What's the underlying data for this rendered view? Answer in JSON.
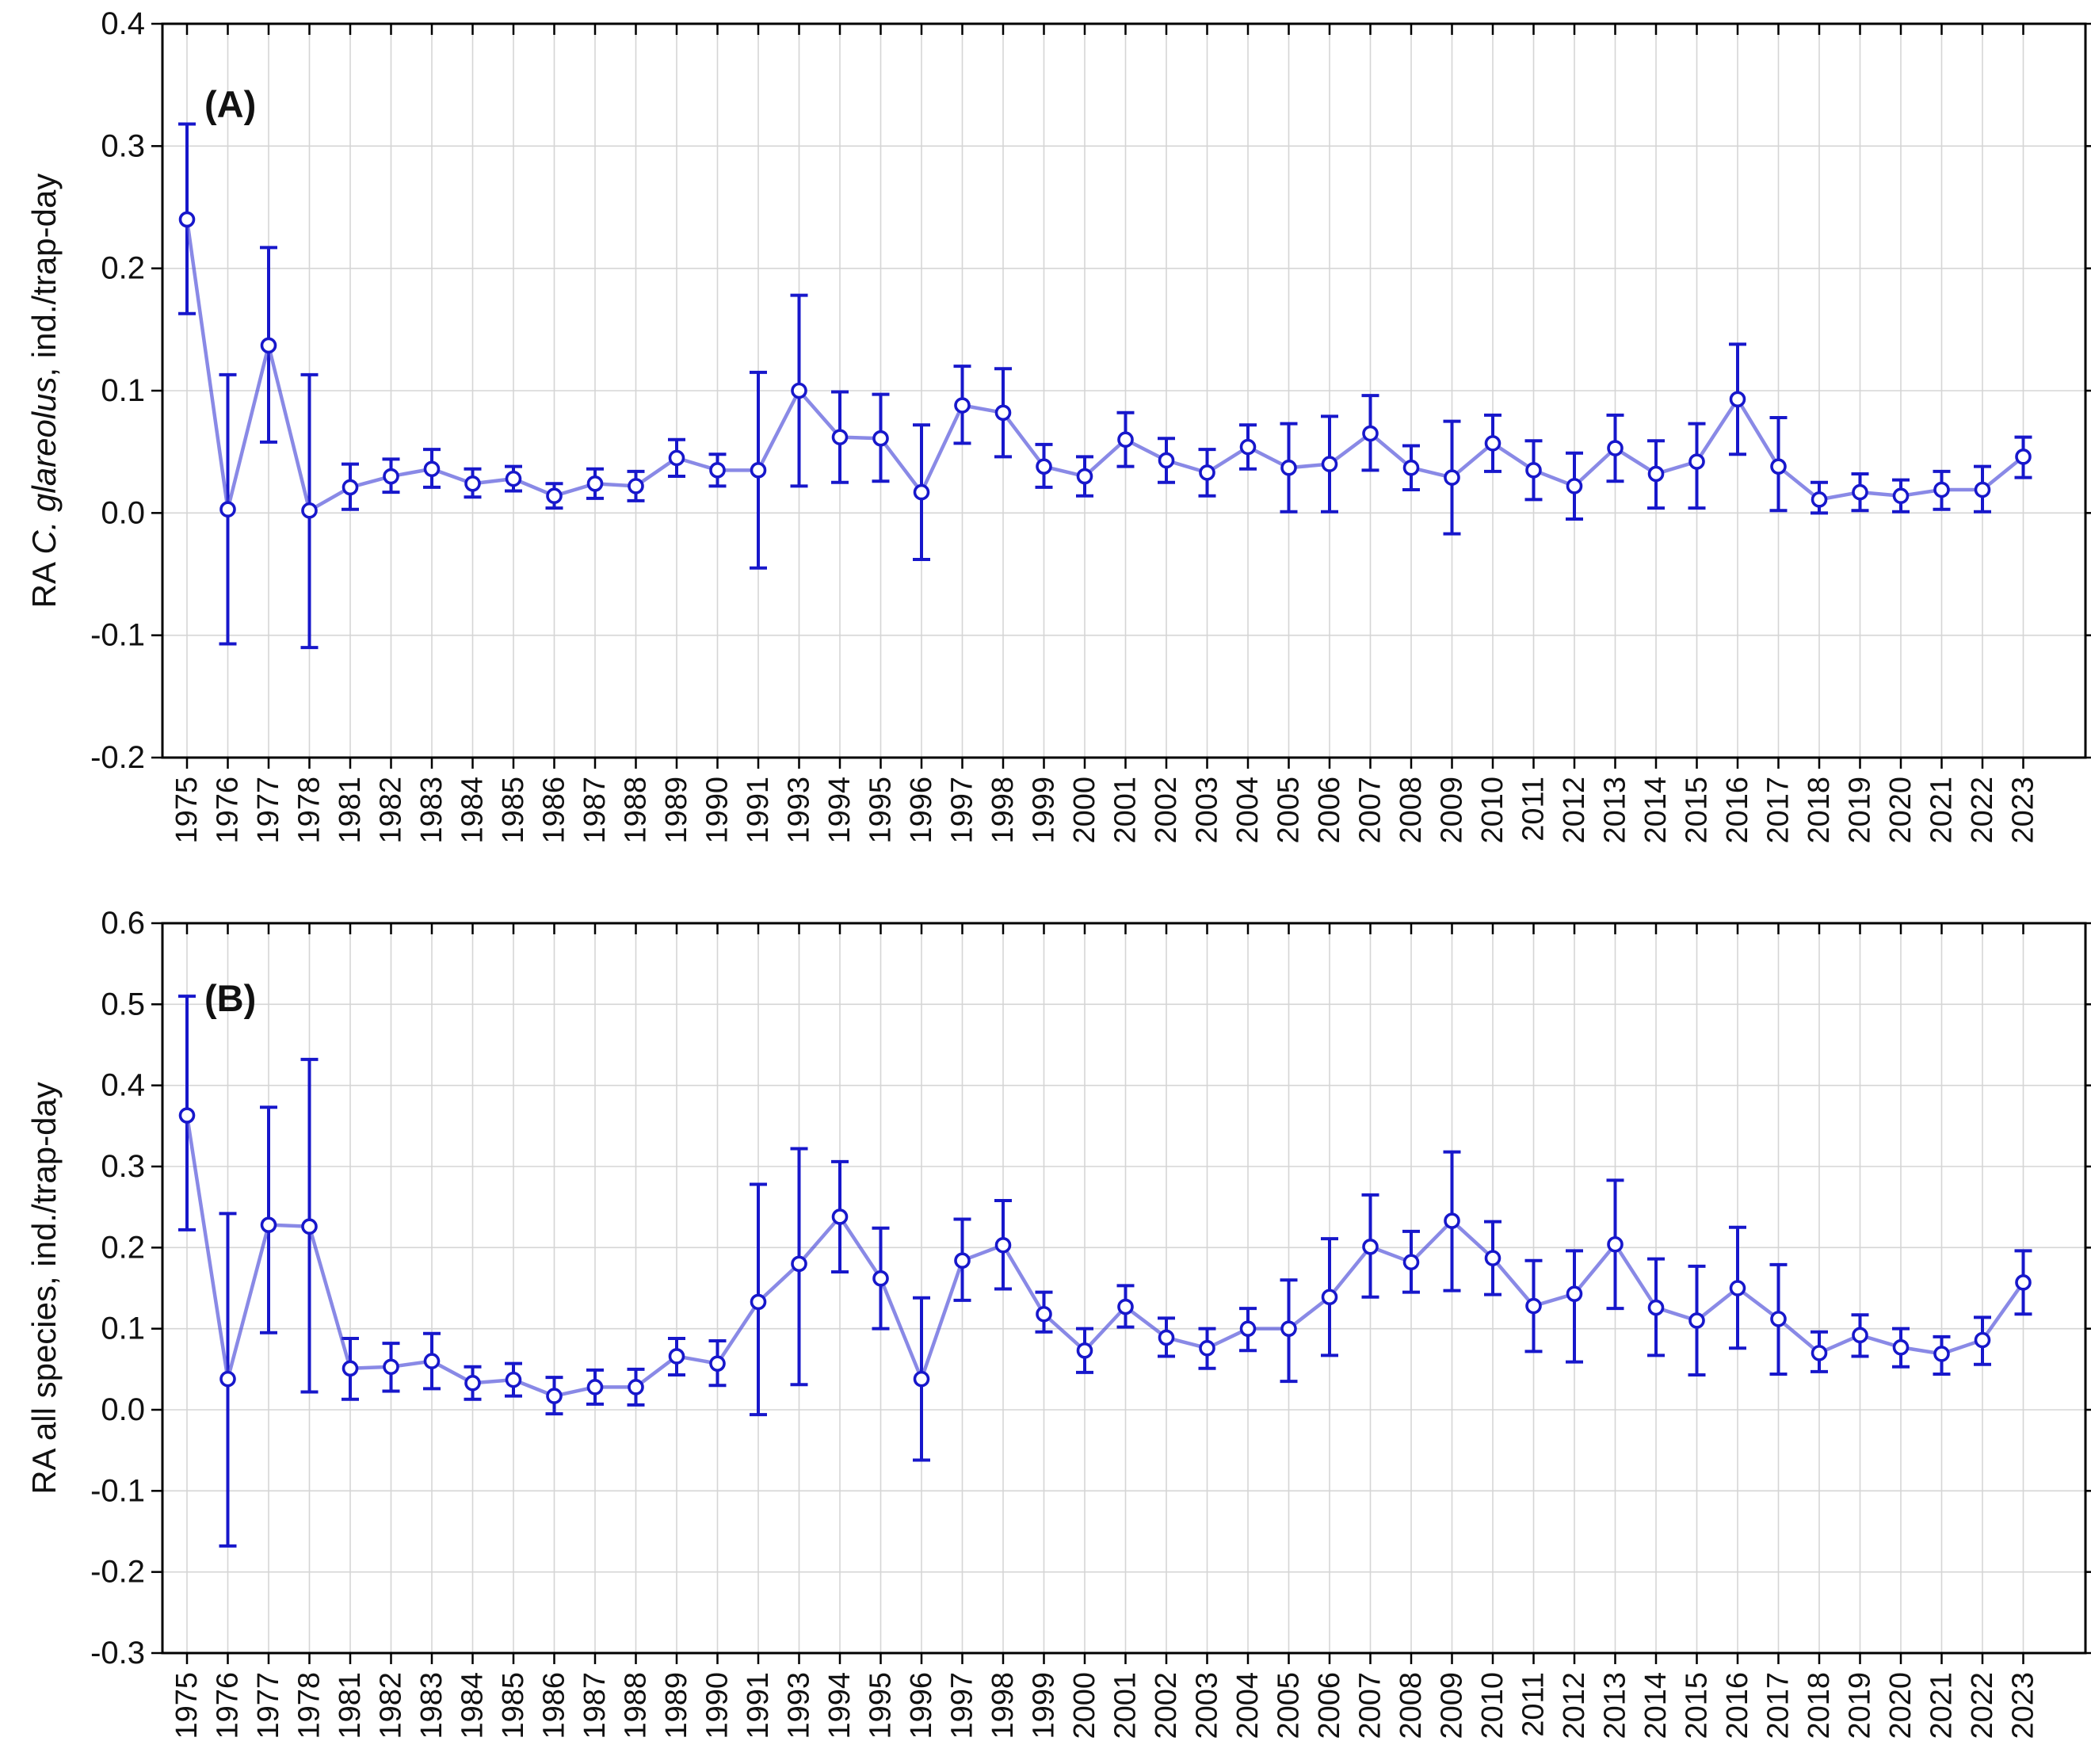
{
  "figure": {
    "background": "#ffffff",
    "series_color": "#1717cb",
    "line_color": "rgba(64,64,214,0.62)",
    "grid_color": "#d5d5d5",
    "axis_color": "#000000",
    "text_color": "#111111",
    "marker_fill": "#ffffff"
  },
  "chart_data": [
    {
      "type": "line",
      "panel_label": "(A)",
      "ylabel": "RA C. glareolus, ind./trap-day",
      "ylabel_parts": [
        {
          "text": "RA ",
          "italic": false
        },
        {
          "text": "C. glareolus",
          "italic": true
        },
        {
          "text": ", ind./trap-day",
          "italic": false
        }
      ],
      "xlabel": "",
      "ylim": [
        -0.2,
        0.4
      ],
      "yticks": [
        0.4,
        0.3,
        0.2,
        0.1,
        0.0,
        -0.1,
        -0.2
      ],
      "grid": true,
      "legend_position": "none",
      "marker": "open-circle",
      "categories": [
        1975,
        1976,
        1977,
        1978,
        1981,
        1982,
        1983,
        1984,
        1985,
        1986,
        1987,
        1988,
        1989,
        1990,
        1991,
        1993,
        1994,
        1995,
        1996,
        1997,
        1998,
        1999,
        2000,
        2001,
        2002,
        2003,
        2004,
        2005,
        2006,
        2007,
        2008,
        2009,
        2010,
        2011,
        2012,
        2013,
        2014,
        2015,
        2016,
        2017,
        2018,
        2019,
        2020,
        2021,
        2022,
        2023
      ],
      "series": [
        {
          "name": "RA C. glareolus",
          "values": [
            0.24,
            0.003,
            0.137,
            0.002,
            0.021,
            0.03,
            0.036,
            0.024,
            0.028,
            0.014,
            0.024,
            0.022,
            0.045,
            0.035,
            0.035,
            0.1,
            0.062,
            0.061,
            0.017,
            0.088,
            0.082,
            0.038,
            0.03,
            0.06,
            0.043,
            0.033,
            0.054,
            0.037,
            0.04,
            0.065,
            0.037,
            0.029,
            0.057,
            0.035,
            0.022,
            0.053,
            0.032,
            0.042,
            0.093,
            0.038,
            0.011,
            0.017,
            0.014,
            0.019,
            0.019,
            0.046
          ],
          "ci_low": [
            0.163,
            -0.107,
            0.058,
            -0.11,
            0.003,
            0.017,
            0.021,
            0.013,
            0.018,
            0.004,
            0.012,
            0.01,
            0.03,
            0.022,
            -0.045,
            0.022,
            0.025,
            0.026,
            -0.038,
            0.057,
            0.046,
            0.021,
            0.014,
            0.038,
            0.025,
            0.014,
            0.036,
            0.001,
            0.001,
            0.035,
            0.019,
            -0.017,
            0.034,
            0.011,
            -0.005,
            0.026,
            0.004,
            0.004,
            0.048,
            0.002,
            0.0,
            0.002,
            0.001,
            0.003,
            0.001,
            0.029
          ],
          "ci_high": [
            0.318,
            0.113,
            0.217,
            0.113,
            0.04,
            0.044,
            0.052,
            0.036,
            0.038,
            0.024,
            0.036,
            0.034,
            0.06,
            0.048,
            0.115,
            0.178,
            0.099,
            0.097,
            0.072,
            0.12,
            0.118,
            0.056,
            0.046,
            0.082,
            0.061,
            0.052,
            0.072,
            0.073,
            0.079,
            0.096,
            0.055,
            0.075,
            0.08,
            0.059,
            0.049,
            0.08,
            0.059,
            0.073,
            0.138,
            0.078,
            0.025,
            0.032,
            0.027,
            0.034,
            0.038,
            0.062
          ]
        }
      ]
    },
    {
      "type": "line",
      "panel_label": "(B)",
      "ylabel": "RA all species, ind./trap-day",
      "ylabel_parts": [
        {
          "text": "RA all species, ind./trap-day",
          "italic": false
        }
      ],
      "xlabel": "",
      "ylim": [
        -0.3,
        0.6
      ],
      "yticks": [
        0.6,
        0.5,
        0.4,
        0.3,
        0.2,
        0.1,
        0.0,
        -0.1,
        -0.2,
        -0.3
      ],
      "grid": true,
      "legend_position": "none",
      "marker": "open-circle",
      "categories": [
        1975,
        1976,
        1977,
        1978,
        1981,
        1982,
        1983,
        1984,
        1985,
        1986,
        1987,
        1988,
        1989,
        1990,
        1991,
        1993,
        1994,
        1995,
        1996,
        1997,
        1998,
        1999,
        2000,
        2001,
        2002,
        2003,
        2004,
        2005,
        2006,
        2007,
        2008,
        2009,
        2010,
        2011,
        2012,
        2013,
        2014,
        2015,
        2016,
        2017,
        2018,
        2019,
        2020,
        2021,
        2022,
        2023
      ],
      "series": [
        {
          "name": "RA all species",
          "values": [
            0.363,
            0.038,
            0.228,
            0.226,
            0.051,
            0.053,
            0.06,
            0.033,
            0.037,
            0.017,
            0.028,
            0.028,
            0.066,
            0.057,
            0.133,
            0.18,
            0.238,
            0.162,
            0.038,
            0.184,
            0.203,
            0.118,
            0.073,
            0.127,
            0.089,
            0.076,
            0.1,
            0.1,
            0.139,
            0.201,
            0.182,
            0.233,
            0.187,
            0.128,
            0.143,
            0.204,
            0.126,
            0.11,
            0.15,
            0.112,
            0.07,
            0.092,
            0.077,
            0.069,
            0.086,
            0.157
          ],
          "ci_low": [
            0.222,
            -0.168,
            0.095,
            0.022,
            0.013,
            0.023,
            0.026,
            0.013,
            0.017,
            -0.005,
            0.007,
            0.006,
            0.043,
            0.03,
            -0.006,
            0.031,
            0.17,
            0.1,
            -0.062,
            0.135,
            0.149,
            0.096,
            0.046,
            0.102,
            0.066,
            0.051,
            0.073,
            0.035,
            0.067,
            0.139,
            0.145,
            0.147,
            0.142,
            0.072,
            0.059,
            0.125,
            0.067,
            0.043,
            0.076,
            0.044,
            0.047,
            0.066,
            0.053,
            0.044,
            0.056,
            0.118
          ],
          "ci_high": [
            0.51,
            0.242,
            0.373,
            0.432,
            0.088,
            0.082,
            0.094,
            0.053,
            0.057,
            0.04,
            0.049,
            0.05,
            0.088,
            0.085,
            0.278,
            0.322,
            0.306,
            0.224,
            0.138,
            0.235,
            0.258,
            0.145,
            0.1,
            0.153,
            0.113,
            0.1,
            0.125,
            0.16,
            0.211,
            0.265,
            0.22,
            0.318,
            0.232,
            0.184,
            0.196,
            0.283,
            0.186,
            0.177,
            0.225,
            0.179,
            0.096,
            0.117,
            0.1,
            0.09,
            0.114,
            0.196
          ]
        }
      ]
    }
  ]
}
